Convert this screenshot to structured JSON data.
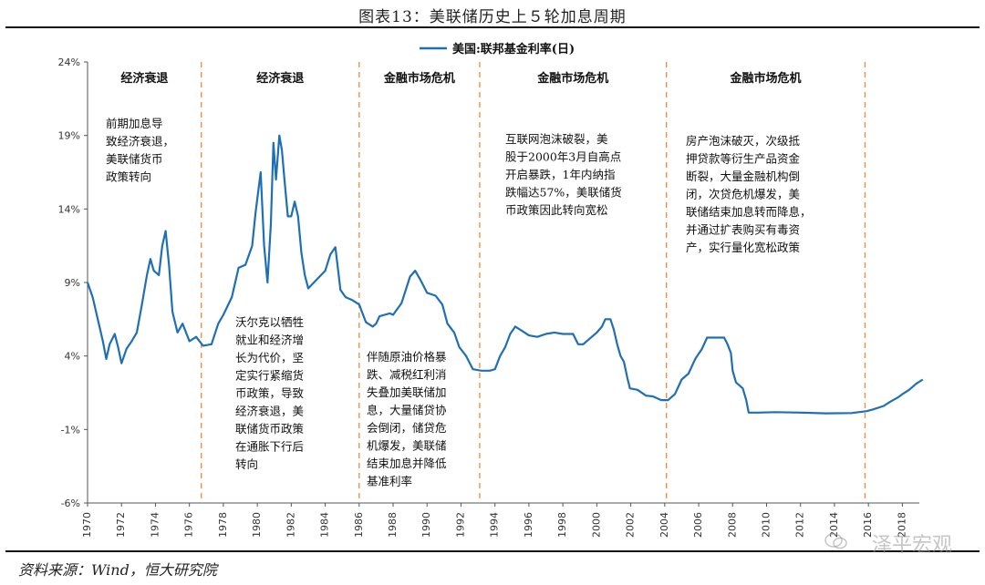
{
  "header": {
    "title": "图表13：美联储历史上５轮加息周期"
  },
  "footer": {
    "source": "资料来源：Wind，恒大研究院",
    "watermark": "泽平宏观"
  },
  "chart_data": {
    "type": "line",
    "legend": "美国:联邦基金利率(日)",
    "legend_position": "top-center",
    "x_ticks": [
      "1970",
      "1972",
      "1974",
      "1976",
      "1978",
      "1980",
      "1982",
      "1984",
      "1986",
      "1988",
      "1990",
      "1992",
      "1994",
      "1996",
      "1998",
      "2000",
      "2002",
      "2004",
      "2006",
      "2008",
      "2010",
      "2012",
      "2014",
      "2016",
      "2018"
    ],
    "y_ticks": [
      "24%",
      "19%",
      "14%",
      "9%",
      "4%",
      "-1%",
      "-6%"
    ],
    "xlim": [
      1970,
      2019
    ],
    "ylim": [
      -6,
      24
    ],
    "grid": false,
    "color": "#1f6fb4",
    "dividers": [
      1976.7,
      1986.0,
      1993.1,
      2004.1,
      2015.8
    ],
    "divider_color": "#f08a3a",
    "eras": [
      "经济衰退",
      "经济衰退",
      "金融市场危机",
      "金融市场危机",
      "金融市场危机"
    ],
    "annotations": [
      {
        "lines": [
          "前期加息导",
          "致经济衰退，",
          "美联储货币",
          "政策转向"
        ]
      },
      {
        "lines": [
          "沃尔克以牺牲",
          "就业和经济增",
          "长为代价，坚",
          "定实行紧缩货",
          "币政策，导致",
          "经济衰退，美",
          "联储货币政策",
          "在通胀下行后",
          "转向"
        ]
      },
      {
        "lines": [
          "伴随原油价格暴",
          "跌、减税红利消",
          "失叠加美联储加",
          "息，大量储贷协",
          "会倒闭，储贷危",
          "机爆发，美联储",
          "结束加息并降低",
          "基准利率"
        ]
      },
      {
        "lines": [
          "互联网泡沫破裂，美",
          "股于2000年3月自高点",
          "开启暴跌，1年内纳指",
          "跌幅达57%，美联储货",
          "币政策因此转向宽松"
        ]
      },
      {
        "lines": [
          "房产泡沫破灭，次级抵",
          "押贷款等衍生产品资金",
          "断裂，大量金融机构倒",
          "闭，次贷危机爆发，美",
          "联储结束加息转而降息，",
          "并通过扩表购买有毒资",
          "产，实行量化宽松政策"
        ]
      }
    ],
    "series": [
      {
        "name": "美国:联邦基金利率(日)",
        "x": [
          1970.0,
          1970.3,
          1970.6,
          1970.9,
          1971.1,
          1971.3,
          1971.6,
          1971.8,
          1972.0,
          1972.3,
          1972.6,
          1972.9,
          1973.2,
          1973.5,
          1973.7,
          1973.9,
          1974.2,
          1974.4,
          1974.6,
          1974.8,
          1975.0,
          1975.3,
          1975.6,
          1976.0,
          1976.4,
          1976.8,
          1977.3,
          1977.7,
          1978.0,
          1978.5,
          1978.9,
          1979.3,
          1979.7,
          1979.9,
          1980.2,
          1980.4,
          1980.6,
          1980.8,
          1980.95,
          1981.1,
          1981.3,
          1981.45,
          1981.6,
          1981.8,
          1982.0,
          1982.2,
          1982.4,
          1982.6,
          1982.8,
          1983.0,
          1983.5,
          1984.0,
          1984.3,
          1984.6,
          1984.9,
          1985.2,
          1985.6,
          1986.0,
          1986.4,
          1986.8,
          1987.0,
          1987.2,
          1987.5,
          1987.8,
          1988.0,
          1988.5,
          1989.0,
          1989.3,
          1989.6,
          1990.0,
          1990.5,
          1990.9,
          1991.2,
          1991.6,
          1991.9,
          1992.3,
          1992.7,
          1993.2,
          1993.7,
          1994.0,
          1994.3,
          1994.6,
          1994.9,
          1995.2,
          1995.6,
          1996.0,
          1996.5,
          1997.0,
          1997.5,
          1998.0,
          1998.6,
          1998.9,
          1999.2,
          1999.6,
          2000.0,
          2000.3,
          2000.5,
          2000.8,
          2001.0,
          2001.2,
          2001.4,
          2001.6,
          2001.8,
          2001.95,
          2002.4,
          2002.9,
          2003.3,
          2003.8,
          2004.2,
          2004.6,
          2005.0,
          2005.4,
          2005.8,
          2006.2,
          2006.5,
          2007.0,
          2007.5,
          2007.7,
          2007.9,
          2008.0,
          2008.2,
          2008.4,
          2008.6,
          2008.8,
          2008.95,
          2009.5,
          2010.5,
          2012.0,
          2013.5,
          2015.0,
          2015.9,
          2016.3,
          2016.9,
          2017.3,
          2017.7,
          2018.0,
          2018.4,
          2018.8,
          2019.2
        ],
        "y": [
          9.0,
          8.0,
          6.5,
          5.0,
          3.8,
          4.8,
          5.5,
          4.6,
          3.5,
          4.5,
          5.0,
          5.6,
          7.5,
          9.5,
          10.6,
          9.8,
          9.5,
          11.5,
          12.5,
          10.2,
          7.0,
          5.6,
          6.2,
          5.0,
          5.3,
          4.7,
          4.8,
          6.2,
          6.8,
          8.0,
          10.0,
          10.2,
          11.5,
          13.8,
          16.5,
          11.5,
          9.0,
          13.0,
          18.5,
          16.0,
          19.0,
          18.0,
          16.0,
          13.5,
          13.5,
          14.5,
          13.5,
          11.0,
          9.5,
          8.6,
          9.2,
          9.8,
          10.9,
          11.4,
          8.5,
          8.0,
          7.8,
          7.5,
          6.3,
          6.0,
          6.2,
          6.7,
          6.8,
          6.9,
          6.8,
          7.6,
          9.4,
          9.8,
          9.2,
          8.3,
          8.1,
          7.5,
          6.2,
          5.6,
          4.6,
          4.0,
          3.1,
          3.0,
          3.0,
          3.1,
          4.0,
          4.6,
          5.5,
          6.0,
          5.7,
          5.4,
          5.3,
          5.5,
          5.6,
          5.5,
          5.5,
          4.8,
          4.8,
          5.2,
          5.6,
          6.0,
          6.5,
          6.5,
          5.8,
          4.8,
          4.0,
          3.6,
          2.5,
          1.8,
          1.7,
          1.3,
          1.25,
          1.0,
          1.0,
          1.4,
          2.4,
          2.8,
          3.8,
          4.5,
          5.25,
          5.25,
          5.25,
          4.8,
          4.2,
          3.0,
          2.2,
          2.0,
          1.8,
          1.0,
          0.15,
          0.15,
          0.18,
          0.15,
          0.1,
          0.12,
          0.25,
          0.37,
          0.6,
          0.9,
          1.15,
          1.4,
          1.7,
          2.1,
          2.4
        ]
      }
    ]
  }
}
